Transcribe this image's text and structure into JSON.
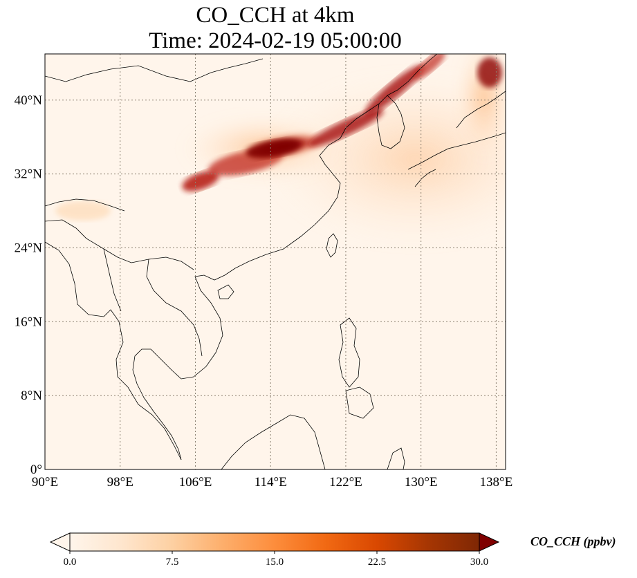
{
  "title": {
    "line1": "CO_CCH at 4km",
    "line2": "Time: 2024-02-19 05:00:00"
  },
  "map": {
    "lon_range": [
      90,
      139
    ],
    "lat_range": [
      0,
      45
    ],
    "lon_ticks": [
      {
        "value": 90,
        "label": "90°E"
      },
      {
        "value": 98,
        "label": "98°E"
      },
      {
        "value": 106,
        "label": "106°E"
      },
      {
        "value": 114,
        "label": "114°E"
      },
      {
        "value": 122,
        "label": "122°E"
      },
      {
        "value": 130,
        "label": "130°E"
      },
      {
        "value": 138,
        "label": "138°E"
      }
    ],
    "lat_ticks": [
      {
        "value": 0,
        "label": "0°"
      },
      {
        "value": 8,
        "label": "8°N"
      },
      {
        "value": 16,
        "label": "16°N"
      },
      {
        "value": 24,
        "label": "24°N"
      },
      {
        "value": 32,
        "label": "32°N"
      },
      {
        "value": 40,
        "label": "40°N"
      }
    ],
    "gridlines": true,
    "background_color": "#fff5eb",
    "grid_color": "#8c7f70"
  },
  "colorbar": {
    "label": "CO_CCH (ppbv)",
    "min": 0,
    "max": 30,
    "extend": "both",
    "ticks": [
      {
        "value": 0,
        "label": "0.0"
      },
      {
        "value": 7.5,
        "label": "7.5"
      },
      {
        "value": 15,
        "label": "15.0"
      },
      {
        "value": 22.5,
        "label": "22.5"
      },
      {
        "value": 30,
        "label": "30.0"
      }
    ],
    "colormap": [
      "#fff5eb",
      "#fee6ce",
      "#fdd0a2",
      "#fdae6b",
      "#fd8d3c",
      "#f16913",
      "#d94801",
      "#a63603",
      "#7f2704"
    ],
    "under_color": "#fff5eb",
    "over_color": "#7f0000"
  }
}
